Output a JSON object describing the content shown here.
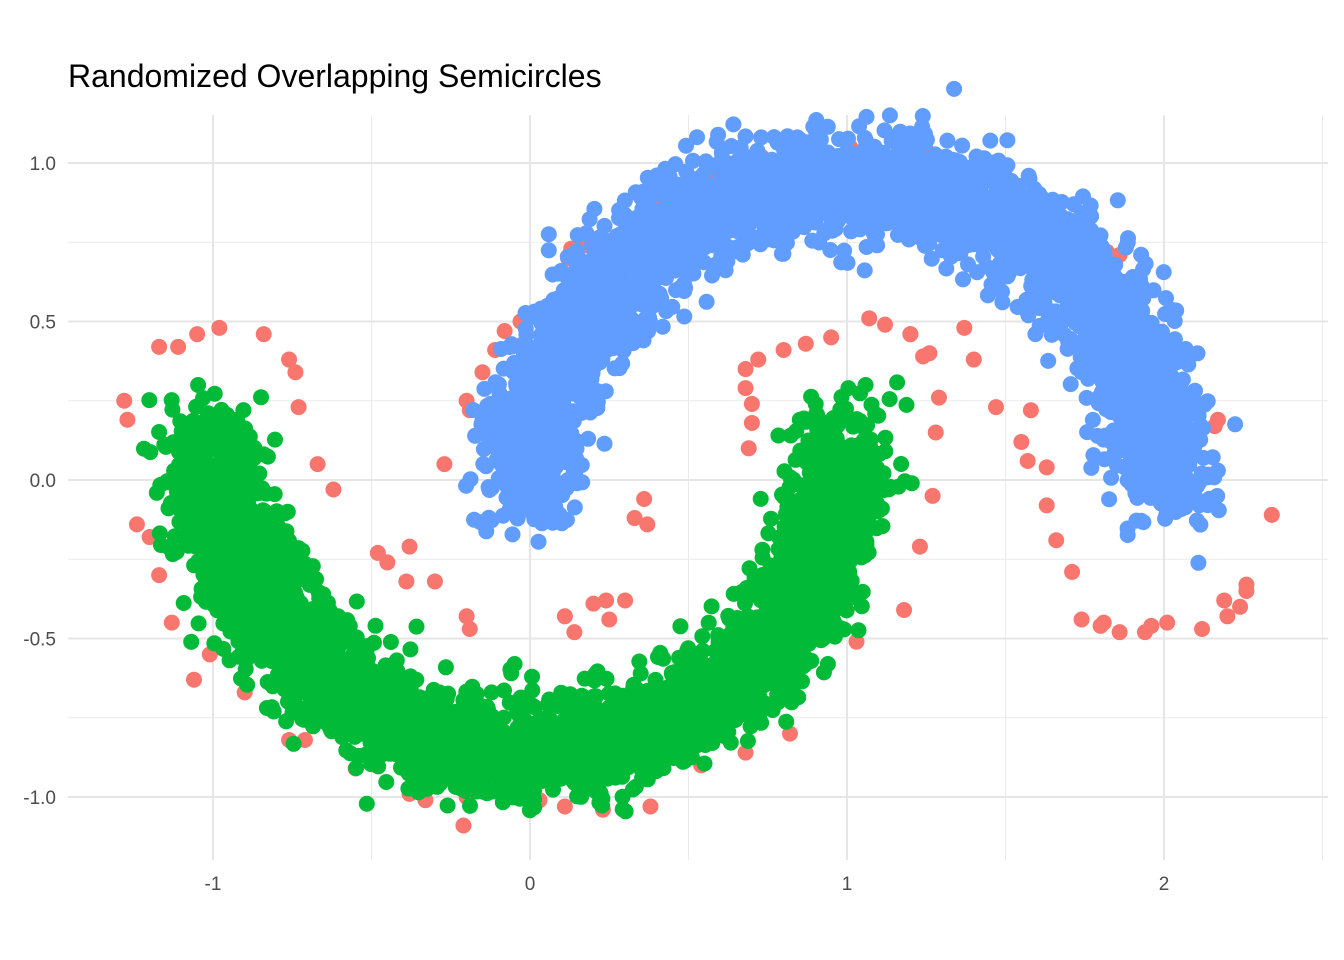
{
  "chart_data": {
    "type": "scatter",
    "title": "Randomized Overlapping Semicircles",
    "xlabel": "",
    "ylabel": "",
    "xlim": [
      -1.45,
      2.5
    ],
    "ylim": [
      -1.15,
      1.15
    ],
    "x_ticks": [
      -1,
      0,
      1,
      2
    ],
    "x_tick_labels": [
      "-1",
      "0",
      "1",
      "2"
    ],
    "y_ticks": [
      -1.0,
      -0.5,
      0.0,
      0.5,
      1.0
    ],
    "y_tick_labels": [
      "-1.0",
      "-0.5",
      "0.0",
      "0.5",
      "1.0"
    ],
    "grid": true,
    "legend": "none",
    "series": [
      {
        "color": "#F8766D",
        "shape": "outlier scatter around both semicircles",
        "values": [
          [
            -1.28,
            0.25
          ],
          [
            -1.27,
            0.19
          ],
          [
            -1.24,
            -0.14
          ],
          [
            -1.2,
            -0.18
          ],
          [
            -1.17,
            -0.3
          ],
          [
            -1.13,
            -0.45
          ],
          [
            -1.06,
            -0.63
          ],
          [
            -1.01,
            -0.55
          ],
          [
            -0.9,
            -0.67
          ],
          [
            -0.76,
            -0.82
          ],
          [
            -0.71,
            -0.82
          ],
          [
            -0.55,
            -0.91
          ],
          [
            -0.38,
            -0.99
          ],
          [
            -0.33,
            -1.01
          ],
          [
            -0.21,
            -1.09
          ],
          [
            -0.2,
            -1.0
          ],
          [
            0.03,
            -1.01
          ],
          [
            0.11,
            -1.03
          ],
          [
            0.23,
            -1.04
          ],
          [
            0.38,
            -1.03
          ],
          [
            0.54,
            -0.9
          ],
          [
            0.68,
            -0.86
          ],
          [
            0.82,
            -0.8
          ],
          [
            1.03,
            -0.51
          ],
          [
            1.18,
            -0.41
          ],
          [
            1.23,
            -0.21
          ],
          [
            1.27,
            -0.05
          ],
          [
            1.28,
            0.15
          ],
          [
            1.29,
            0.26
          ],
          [
            1.24,
            0.39
          ],
          [
            1.2,
            0.46
          ],
          [
            1.12,
            0.49
          ],
          [
            1.07,
            0.51
          ],
          [
            0.95,
            0.45
          ],
          [
            0.87,
            0.43
          ],
          [
            0.8,
            0.41
          ],
          [
            0.72,
            0.38
          ],
          [
            0.68,
            0.35
          ],
          [
            0.68,
            0.29
          ],
          [
            0.7,
            0.24
          ],
          [
            0.7,
            0.18
          ],
          [
            0.69,
            0.1
          ],
          [
            -0.76,
            0.38
          ],
          [
            -0.74,
            0.34
          ],
          [
            -0.73,
            0.23
          ],
          [
            -0.84,
            0.46
          ],
          [
            -0.98,
            0.48
          ],
          [
            -1.05,
            0.46
          ],
          [
            -1.11,
            0.42
          ],
          [
            -1.17,
            0.42
          ],
          [
            -0.67,
            0.05
          ],
          [
            -0.62,
            -0.03
          ],
          [
            -0.48,
            -0.23
          ],
          [
            -0.45,
            -0.26
          ],
          [
            -0.39,
            -0.32
          ],
          [
            -0.3,
            -0.32
          ],
          [
            -0.2,
            -0.43
          ],
          [
            -0.19,
            -0.47
          ],
          [
            -0.27,
            0.05
          ],
          [
            -0.2,
            0.25
          ],
          [
            -0.19,
            0.22
          ],
          [
            -0.15,
            0.34
          ],
          [
            -0.11,
            0.41
          ],
          [
            -0.08,
            0.47
          ],
          [
            -0.03,
            0.5
          ],
          [
            0.12,
            0.7
          ],
          [
            0.13,
            0.73
          ],
          [
            0.17,
            0.74
          ],
          [
            0.24,
            -0.38
          ],
          [
            0.3,
            -0.38
          ],
          [
            0.33,
            -0.12
          ],
          [
            0.36,
            -0.06
          ],
          [
            0.37,
            -0.14
          ],
          [
            0.11,
            -0.43
          ],
          [
            0.14,
            -0.48
          ],
          [
            0.2,
            -0.39
          ],
          [
            0.25,
            -0.44
          ],
          [
            0.41,
            0.86
          ],
          [
            0.58,
            0.96
          ],
          [
            0.6,
            0.9
          ],
          [
            0.73,
            1.02
          ],
          [
            0.76,
            0.98
          ],
          [
            0.97,
            0.93
          ],
          [
            1.01,
            1.05
          ],
          [
            1.09,
            0.97
          ],
          [
            1.25,
            1.04
          ],
          [
            1.3,
            1.0
          ],
          [
            1.41,
            0.97
          ],
          [
            1.61,
            0.87
          ],
          [
            1.66,
            0.83
          ],
          [
            1.82,
            0.72
          ],
          [
            1.86,
            0.71
          ],
          [
            1.87,
            0.62
          ],
          [
            1.93,
            0.48
          ],
          [
            1.95,
            0.42
          ],
          [
            1.99,
            0.35
          ],
          [
            2.03,
            0.37
          ],
          [
            2.06,
            0.16
          ],
          [
            2.07,
            0.2
          ],
          [
            2.16,
            0.17
          ],
          [
            2.17,
            0.19
          ],
          [
            2.34,
            -0.11
          ],
          [
            2.26,
            -0.33
          ],
          [
            2.26,
            -0.35
          ],
          [
            2.24,
            -0.4
          ],
          [
            2.2,
            -0.43
          ],
          [
            2.19,
            -0.38
          ],
          [
            2.12,
            -0.47
          ],
          [
            2.01,
            -0.45
          ],
          [
            1.96,
            -0.46
          ],
          [
            1.94,
            -0.48
          ],
          [
            1.86,
            -0.48
          ],
          [
            1.81,
            -0.45
          ],
          [
            1.8,
            -0.46
          ],
          [
            1.74,
            -0.44
          ],
          [
            1.71,
            -0.29
          ],
          [
            1.66,
            -0.19
          ],
          [
            1.63,
            -0.08
          ],
          [
            1.55,
            0.12
          ],
          [
            1.57,
            0.06
          ],
          [
            1.63,
            0.04
          ],
          [
            1.58,
            0.22
          ],
          [
            1.47,
            0.23
          ],
          [
            1.4,
            0.38
          ],
          [
            1.37,
            0.48
          ],
          [
            1.26,
            0.4
          ],
          [
            1.2,
            0.46
          ],
          [
            -0.38,
            -0.21
          ]
        ]
      },
      {
        "color": "#619CFF",
        "shape": "upper semicircle centered near (1, 0), radius about 1",
        "approx_points": 3500
      },
      {
        "color": "#00BA38",
        "shape": "lower semicircle centered near (0, -0.1), radius about 1",
        "approx_points": 3500
      }
    ]
  }
}
